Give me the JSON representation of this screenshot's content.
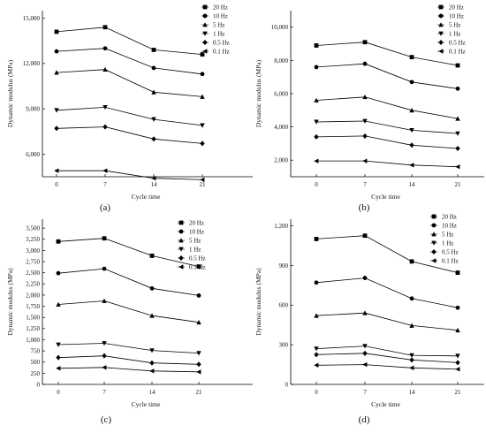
{
  "chart_data": [
    {
      "panel_label": "(a)",
      "type": "line",
      "xlabel": "Cycle time",
      "ylabel": "Dynamic modulus (MPa)",
      "categories": [
        "0",
        "7",
        "14",
        "21"
      ],
      "ylim": [
        4500,
        15500
      ],
      "yticks": [
        6000,
        9000,
        12000,
        15000
      ],
      "ytick_labels": [
        "6,000",
        "9,000",
        "12,000",
        "15,000"
      ],
      "series": [
        {
          "name": "20 Hz",
          "marker": "square",
          "values": [
            14100,
            14400,
            12900,
            12600
          ]
        },
        {
          "name": "10 Hz",
          "marker": "circle",
          "values": [
            12800,
            13000,
            11700,
            11300
          ]
        },
        {
          "name": "5 Hz",
          "marker": "triangle-up",
          "values": [
            11400,
            11600,
            10100,
            9800
          ]
        },
        {
          "name": "1 Hz",
          "marker": "triangle-down",
          "values": [
            8900,
            9100,
            8300,
            7900
          ]
        },
        {
          "name": "0.5 Hz",
          "marker": "diamond",
          "values": [
            7700,
            7800,
            7000,
            6700
          ]
        },
        {
          "name": "0.1 Hz",
          "marker": "triangle-left",
          "values": [
            4900,
            4900,
            4400,
            4300
          ]
        }
      ]
    },
    {
      "panel_label": "(b)",
      "type": "line",
      "xlabel": "Cycle time",
      "ylabel": "Dynamic modulus (MPa)",
      "categories": [
        "0",
        "7",
        "14",
        "21"
      ],
      "ylim": [
        1000,
        11000
      ],
      "yticks": [
        2000,
        4000,
        6000,
        8000,
        10000
      ],
      "ytick_labels": [
        "2,000",
        "4,000",
        "6,000",
        "8,000",
        "10,000"
      ],
      "series": [
        {
          "name": "20 Hz",
          "marker": "square",
          "values": [
            8900,
            9100,
            8200,
            7700
          ]
        },
        {
          "name": "10 Hz",
          "marker": "circle",
          "values": [
            7600,
            7800,
            6700,
            6300
          ]
        },
        {
          "name": "5 Hz",
          "marker": "triangle-up",
          "values": [
            5600,
            5800,
            5000,
            4500
          ]
        },
        {
          "name": "1 Hz",
          "marker": "triangle-down",
          "values": [
            4300,
            4350,
            3800,
            3600
          ]
        },
        {
          "name": "0.5 Hz",
          "marker": "diamond",
          "values": [
            3400,
            3450,
            2900,
            2700
          ]
        },
        {
          "name": "0.1 Hz",
          "marker": "triangle-left",
          "values": [
            1950,
            1950,
            1700,
            1600
          ]
        }
      ]
    },
    {
      "panel_label": "(c)",
      "type": "line",
      "xlabel": "Cycle time",
      "ylabel": "Dynamic modulus (MPa)",
      "categories": [
        "0",
        "7",
        "14",
        "21"
      ],
      "ylim": [
        0,
        3700
      ],
      "yticks": [
        0,
        250,
        500,
        750,
        1000,
        1250,
        1500,
        1750,
        2000,
        2250,
        2500,
        2750,
        3000,
        3250,
        3500
      ],
      "ytick_labels": [
        "0",
        "250",
        "500",
        "750",
        "1,000",
        "1,250",
        "1,500",
        "1,750",
        "2,000",
        "2,250",
        "2,500",
        "2,750",
        "3,000",
        "3,250",
        "3,500"
      ],
      "series": [
        {
          "name": "20 Hz",
          "marker": "square",
          "values": [
            3200,
            3270,
            2880,
            2640
          ]
        },
        {
          "name": "10 Hz",
          "marker": "circle",
          "values": [
            2490,
            2590,
            2150,
            1990
          ]
        },
        {
          "name": "5 Hz",
          "marker": "triangle-up",
          "values": [
            1790,
            1870,
            1540,
            1390
          ]
        },
        {
          "name": "1 Hz",
          "marker": "triangle-down",
          "values": [
            890,
            920,
            760,
            700
          ]
        },
        {
          "name": "0.5 Hz",
          "marker": "diamond",
          "values": [
            600,
            640,
            480,
            450
          ]
        },
        {
          "name": "0.1 Hz",
          "marker": "triangle-left",
          "values": [
            360,
            380,
            300,
            280
          ]
        }
      ]
    },
    {
      "panel_label": "(d)",
      "type": "line",
      "xlabel": "Cycle time",
      "ylabel": "Dynamic modulus (MPa)",
      "categories": [
        "0",
        "7",
        "14",
        "21"
      ],
      "ylim": [
        0,
        1250
      ],
      "yticks": [
        0,
        300,
        600,
        900,
        1200
      ],
      "ytick_labels": [
        "0",
        "300",
        "600",
        "900",
        "1,200"
      ],
      "series": [
        {
          "name": "20 Hz",
          "marker": "square",
          "values": [
            1100,
            1125,
            930,
            845
          ]
        },
        {
          "name": "10 Hz",
          "marker": "circle",
          "values": [
            770,
            805,
            650,
            580
          ]
        },
        {
          "name": "5 Hz",
          "marker": "triangle-up",
          "values": [
            520,
            540,
            445,
            410
          ]
        },
        {
          "name": "1 Hz",
          "marker": "triangle-down",
          "values": [
            270,
            290,
            220,
            215
          ]
        },
        {
          "name": "0.5 Hz",
          "marker": "diamond",
          "values": [
            225,
            235,
            185,
            165
          ]
        },
        {
          "name": "0.1 Hz",
          "marker": "triangle-left",
          "values": [
            145,
            150,
            125,
            115
          ]
        }
      ]
    }
  ]
}
